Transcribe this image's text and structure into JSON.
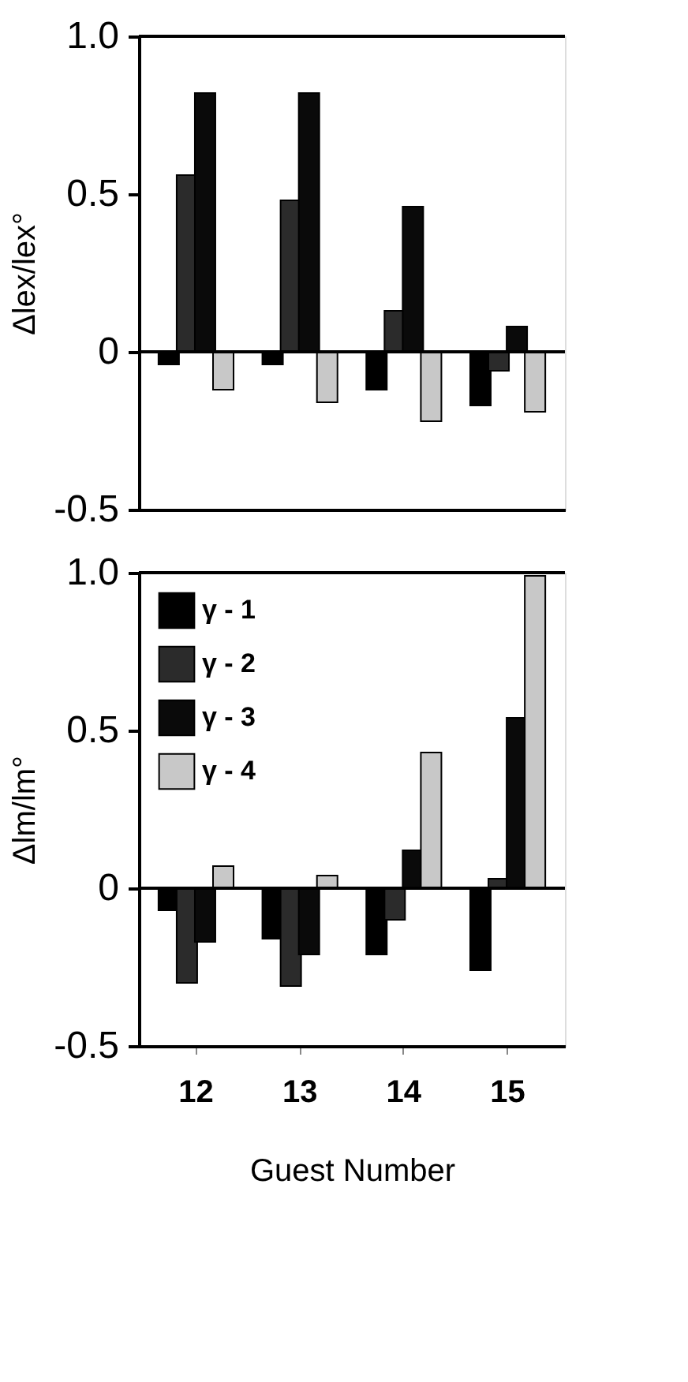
{
  "chart_data": [
    {
      "type": "bar",
      "ylabel": "Δlex/lex°",
      "categories": [
        "12",
        "13",
        "14",
        "15"
      ],
      "ylim": [
        -0.5,
        1.0
      ],
      "yticks": [
        -0.5,
        0,
        0.5,
        {
          "value": 1.0,
          "label": "1.0"
        }
      ],
      "tick_labels": "y",
      "grid": false,
      "legend": false,
      "ref_lines": [
        {
          "axis": "y",
          "value": 0,
          "color": "#000000"
        }
      ],
      "series": [
        {
          "color": "#000000",
          "values": [
            -0.04,
            -0.04,
            -0.12,
            -0.17
          ]
        },
        {
          "color": "#2b2b2b",
          "values": [
            0.56,
            0.48,
            0.13,
            -0.06
          ]
        },
        {
          "color": "#0a0a0a",
          "values": [
            0.82,
            0.82,
            0.46,
            0.08
          ]
        },
        {
          "color": "#c8c8c8",
          "values": [
            -0.12,
            -0.16,
            -0.22,
            -0.19
          ]
        }
      ]
    },
    {
      "type": "bar",
      "xlabel": "Guest Number",
      "ylabel": "Δlm/lm°",
      "categories": [
        "12",
        "13",
        "14",
        "15"
      ],
      "ylim": [
        -0.5,
        1.0
      ],
      "yticks": [
        -0.5,
        0,
        0.5,
        {
          "value": 1.0,
          "label": "1.0"
        }
      ],
      "grid": false,
      "legend": "top left",
      "ref_lines": [
        {
          "axis": "y",
          "value": 0,
          "color": "#000000"
        }
      ],
      "series": [
        {
          "name": "γ - 1",
          "color": "#000000",
          "values": [
            -0.07,
            -0.16,
            -0.21,
            -0.26
          ]
        },
        {
          "name": "γ - 2",
          "color": "#2b2b2b",
          "values": [
            -0.3,
            -0.31,
            -0.1,
            0.03
          ]
        },
        {
          "name": "γ - 3",
          "color": "#0a0a0a",
          "values": [
            -0.17,
            -0.21,
            0.12,
            0.54
          ]
        },
        {
          "name": "γ - 4",
          "color": "#c8c8c8",
          "values": [
            0.07,
            0.04,
            0.43,
            0.99
          ]
        }
      ]
    }
  ]
}
